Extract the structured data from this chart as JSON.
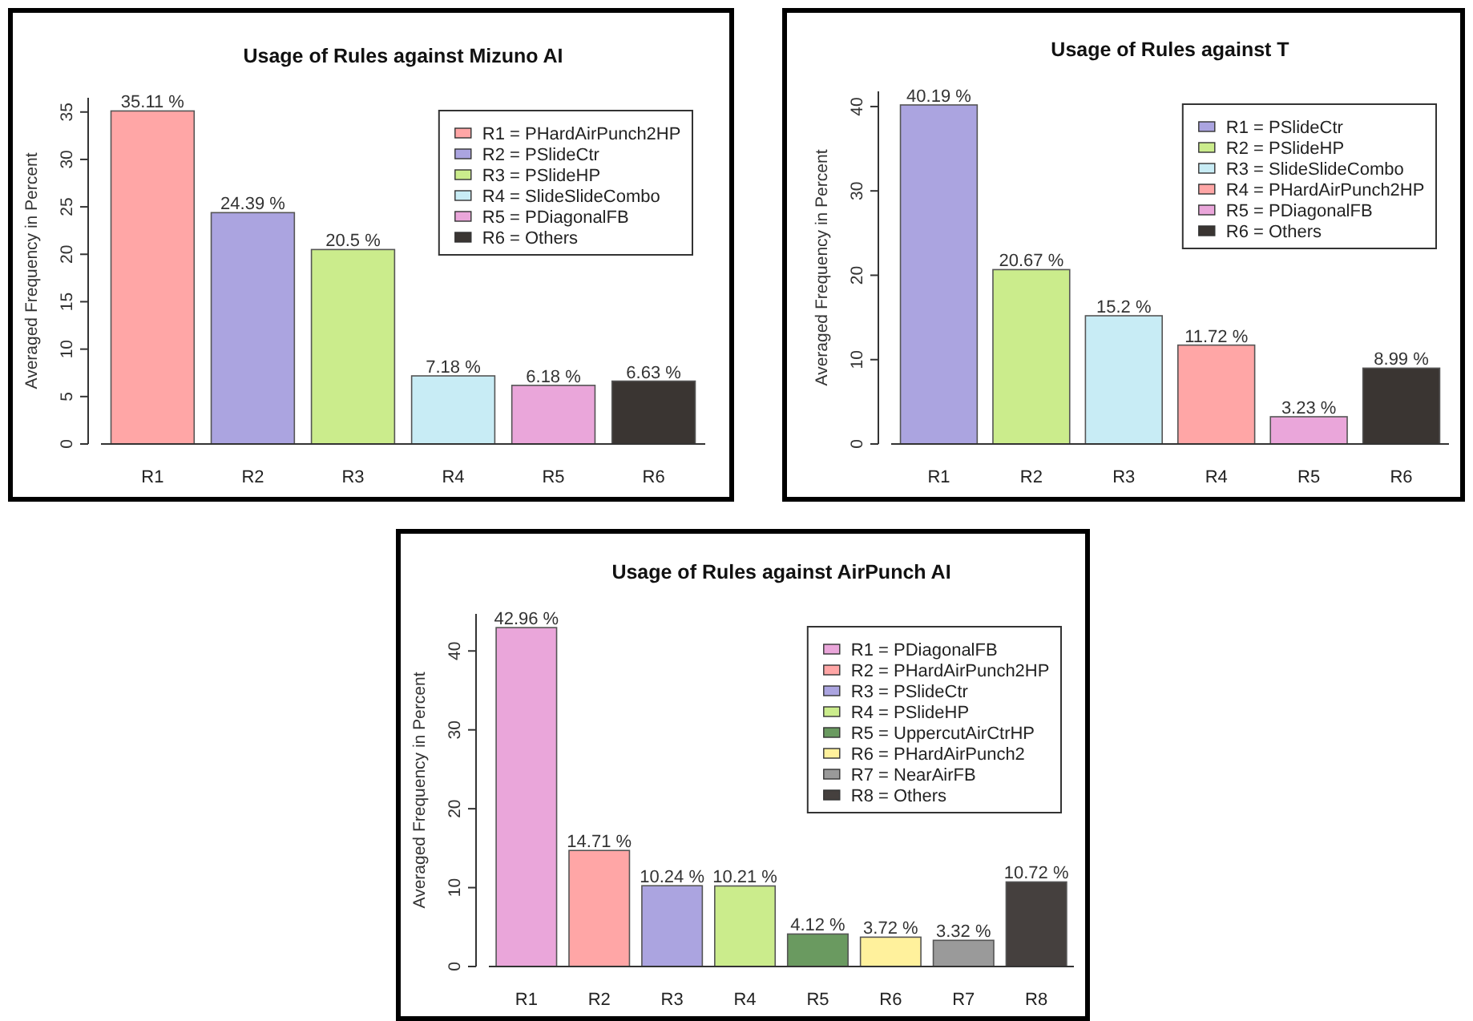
{
  "chart_data": [
    {
      "type": "bar",
      "title": "Usage of Rules against Mizuno AI",
      "ylabel": "Averaged Frequency in Percent",
      "categories": [
        "R1",
        "R2",
        "R3",
        "R4",
        "R5",
        "R6"
      ],
      "stacked": true,
      "legend": "top right",
      "ylim": [
        0,
        36.5
      ],
      "yticks": [
        0,
        5,
        10,
        15,
        20,
        25,
        30,
        35
      ],
      "series": [
        {
          "name": "R1 = PHardAirPunch2HP",
          "color": "#ffa6a6",
          "values": [
            35.11,
            null,
            null,
            null,
            null,
            null
          ],
          "value_labels": [
            "35.11 %",
            null,
            null,
            null,
            null,
            null
          ]
        },
        {
          "name": "R2 = PSlideCtr",
          "color": "#aba4e0",
          "values": [
            null,
            24.39,
            null,
            null,
            null,
            null
          ],
          "value_labels": [
            null,
            "24.39 %",
            null,
            null,
            null,
            null
          ]
        },
        {
          "name": "R3 = PSlideHP",
          "color": "#cbec8c",
          "values": [
            null,
            null,
            20.5,
            null,
            null,
            null
          ],
          "value_labels": [
            null,
            null,
            "20.5 %",
            null,
            null,
            null
          ]
        },
        {
          "name": "R4 = SlideSlideCombo",
          "color": "#c8ecf5",
          "values": [
            null,
            null,
            null,
            7.18,
            null,
            null
          ],
          "value_labels": [
            null,
            null,
            null,
            "7.18 %",
            null,
            null
          ]
        },
        {
          "name": "R5 = PDiagonalFB",
          "color": "#eaa6da",
          "values": [
            null,
            null,
            null,
            null,
            6.18,
            null
          ],
          "value_labels": [
            null,
            null,
            null,
            null,
            "6.18 %",
            null
          ]
        },
        {
          "name": "R6 = Others",
          "color": "#3a3532",
          "values": [
            null,
            null,
            null,
            null,
            null,
            6.63
          ],
          "value_labels": [
            null,
            null,
            null,
            null,
            null,
            "6.63 %"
          ]
        }
      ]
    },
    {
      "type": "bar",
      "title": "Usage of Rules against T",
      "ylabel": "Averaged Frequency in Percent",
      "categories": [
        "R1",
        "R2",
        "R3",
        "R4",
        "R5",
        "R6"
      ],
      "stacked": true,
      "legend": "top right",
      "ylim": [
        0,
        41.8
      ],
      "yticks": [
        0,
        10,
        20,
        30,
        40
      ],
      "series": [
        {
          "name": "R1 = PSlideCtr",
          "color": "#aba4e0",
          "values": [
            40.19,
            null,
            null,
            null,
            null,
            null
          ],
          "value_labels": [
            "40.19 %",
            null,
            null,
            null,
            null,
            null
          ]
        },
        {
          "name": "R2 = PSlideHP",
          "color": "#cbec8c",
          "values": [
            null,
            20.67,
            null,
            null,
            null,
            null
          ],
          "value_labels": [
            null,
            "20.67 %",
            null,
            null,
            null,
            null
          ]
        },
        {
          "name": "R3 = SlideSlideCombo",
          "color": "#c8ecf5",
          "values": [
            null,
            null,
            15.2,
            null,
            null,
            null
          ],
          "value_labels": [
            null,
            null,
            "15.2 %",
            null,
            null,
            null
          ]
        },
        {
          "name": "R4 = PHardAirPunch2HP",
          "color": "#ffa6a6",
          "values": [
            null,
            null,
            null,
            11.72,
            null,
            null
          ],
          "value_labels": [
            null,
            null,
            null,
            "11.72 %",
            null,
            null
          ]
        },
        {
          "name": "R5 = PDiagonalFB",
          "color": "#eaa6da",
          "values": [
            null,
            null,
            null,
            null,
            3.23,
            null
          ],
          "value_labels": [
            null,
            null,
            null,
            null,
            "3.23 %",
            null
          ]
        },
        {
          "name": "R6 = Others",
          "color": "#3a3532",
          "values": [
            null,
            null,
            null,
            null,
            null,
            8.99
          ],
          "value_labels": [
            null,
            null,
            null,
            null,
            null,
            "8.99 %"
          ]
        }
      ]
    },
    {
      "type": "bar",
      "title": "Usage of Rules against AirPunch AI",
      "ylabel": "Averaged Frequency in Percent",
      "categories": [
        "R1",
        "R2",
        "R3",
        "R4",
        "R5",
        "R6",
        "R7",
        "R8"
      ],
      "stacked": true,
      "legend": "top right",
      "ylim": [
        0,
        44.7
      ],
      "yticks": [
        0,
        10,
        20,
        30,
        40
      ],
      "series": [
        {
          "name": "R1 = PDiagonalFB",
          "color": "#eaa6da",
          "values": [
            42.96,
            null,
            null,
            null,
            null,
            null,
            null,
            null
          ],
          "value_labels": [
            "42.96 %",
            null,
            null,
            null,
            null,
            null,
            null,
            null
          ]
        },
        {
          "name": "R2 = PHardAirPunch2HP",
          "color": "#ffa6a6",
          "values": [
            null,
            14.71,
            null,
            null,
            null,
            null,
            null,
            null
          ],
          "value_labels": [
            null,
            "14.71 %",
            null,
            null,
            null,
            null,
            null,
            null
          ]
        },
        {
          "name": "R3 = PSlideCtr",
          "color": "#aba4e0",
          "values": [
            null,
            null,
            10.24,
            null,
            null,
            null,
            null,
            null
          ],
          "value_labels": [
            null,
            null,
            "10.24 %",
            null,
            null,
            null,
            null,
            null
          ]
        },
        {
          "name": "R4 = PSlideHP",
          "color": "#cbec8c",
          "values": [
            null,
            null,
            null,
            10.21,
            null,
            null,
            null,
            null
          ],
          "value_labels": [
            null,
            null,
            null,
            "10.21 %",
            null,
            null,
            null,
            null
          ]
        },
        {
          "name": "R5 = UppercutAirCtrHP",
          "color": "#6a9a60",
          "values": [
            null,
            null,
            null,
            null,
            4.12,
            null,
            null,
            null
          ],
          "value_labels": [
            null,
            null,
            null,
            null,
            "4.12 %",
            null,
            null,
            null
          ]
        },
        {
          "name": "R6 = PHardAirPunch2",
          "color": "#fff19c",
          "values": [
            null,
            null,
            null,
            null,
            null,
            3.72,
            null,
            null
          ],
          "value_labels": [
            null,
            null,
            null,
            null,
            null,
            "3.72 %",
            null,
            null
          ]
        },
        {
          "name": "R7 = NearAirFB",
          "color": "#9a9a9a",
          "values": [
            null,
            null,
            null,
            null,
            null,
            null,
            3.32,
            null
          ],
          "value_labels": [
            null,
            null,
            null,
            null,
            null,
            null,
            "3.32 %",
            null
          ]
        },
        {
          "name": "R8 = Others",
          "color": "#45403e",
          "values": [
            null,
            null,
            null,
            null,
            null,
            null,
            null,
            10.72
          ],
          "value_labels": [
            null,
            null,
            null,
            null,
            null,
            null,
            null,
            "10.72 %"
          ]
        }
      ]
    }
  ]
}
